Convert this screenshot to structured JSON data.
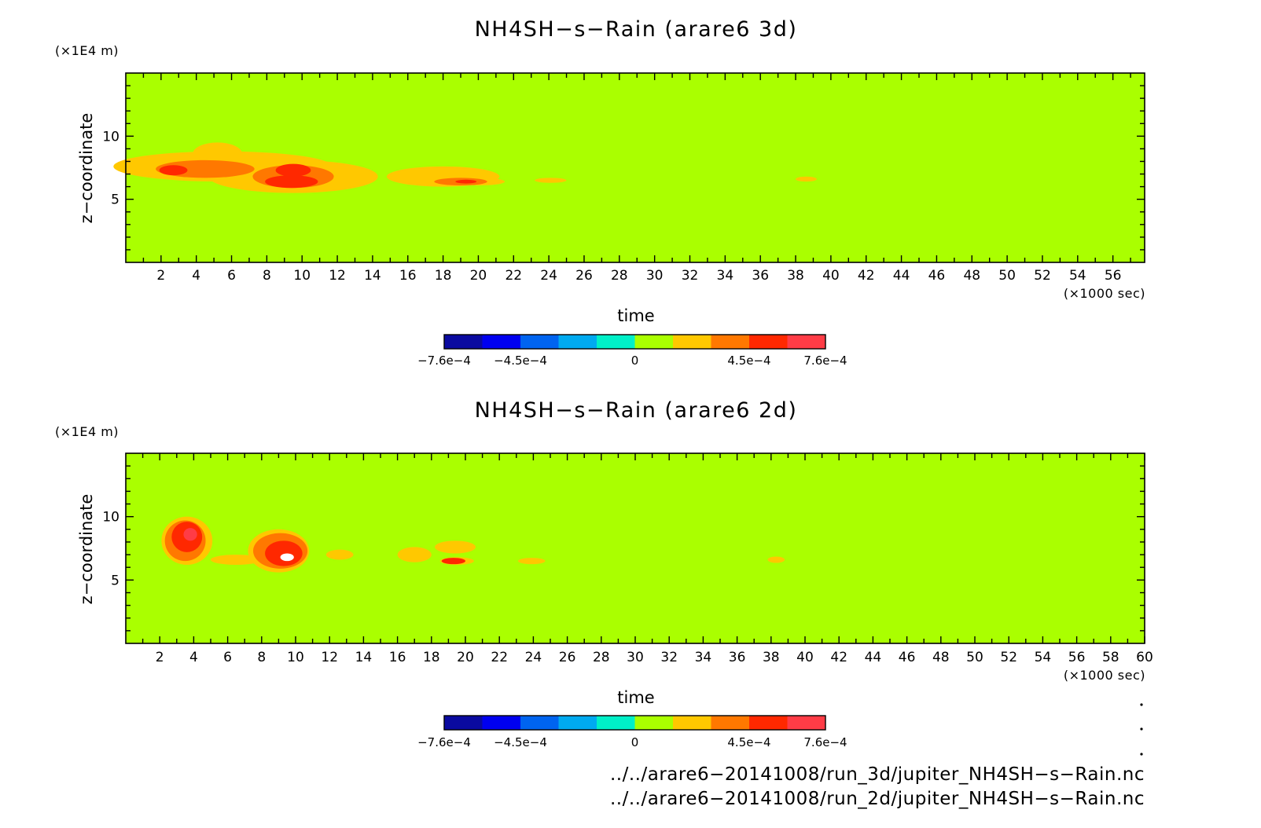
{
  "chart_data": [
    {
      "type": "heatmap",
      "title": "NH4SH−s−Rain (arare6 3d)",
      "xlabel": "time",
      "ylabel": "z−coordinate",
      "x_unit": "(×1000 sec)",
      "y_unit": "(×1E4 m)",
      "xlim": [
        0,
        57.8
      ],
      "ylim": [
        0,
        15
      ],
      "x_ticks": [
        "2",
        "4",
        "6",
        "8",
        "10",
        "12",
        "14",
        "16",
        "18",
        "20",
        "22",
        "24",
        "26",
        "28",
        "30",
        "32",
        "34",
        "36",
        "38",
        "40",
        "42",
        "44",
        "46",
        "48",
        "50",
        "52",
        "54",
        "56"
      ],
      "y_ticks": [
        "5",
        "10"
      ],
      "background_level": "0",
      "features": [
        {
          "level": 1,
          "cx": 5.5,
          "cy": 7.6,
          "rx": 6.2,
          "ry": 1.2
        },
        {
          "level": 1,
          "cx": 5.2,
          "cy": 8.6,
          "rx": 1.4,
          "ry": 0.9
        },
        {
          "level": 1,
          "cx": 9.5,
          "cy": 6.8,
          "rx": 4.8,
          "ry": 1.3
        },
        {
          "level": 1,
          "cx": 11.5,
          "cy": 7.2,
          "rx": 2.2,
          "ry": 0.5
        },
        {
          "level": 2,
          "cx": 4.5,
          "cy": 7.4,
          "rx": 2.8,
          "ry": 0.7
        },
        {
          "level": 2,
          "cx": 9.5,
          "cy": 6.8,
          "rx": 2.3,
          "ry": 0.9
        },
        {
          "level": 3,
          "cx": 2.7,
          "cy": 7.3,
          "rx": 0.8,
          "ry": 0.4
        },
        {
          "level": 3,
          "cx": 9.5,
          "cy": 7.3,
          "rx": 1.0,
          "ry": 0.5
        },
        {
          "level": 3,
          "cx": 9.4,
          "cy": 6.4,
          "rx": 1.5,
          "ry": 0.5
        },
        {
          "level": 1,
          "cx": 18.0,
          "cy": 6.8,
          "rx": 3.2,
          "ry": 0.8
        },
        {
          "level": 1,
          "cx": 20.0,
          "cy": 6.4,
          "rx": 1.5,
          "ry": 0.3
        },
        {
          "level": 2,
          "cx": 19.0,
          "cy": 6.4,
          "rx": 1.5,
          "ry": 0.3
        },
        {
          "level": 3,
          "cx": 19.3,
          "cy": 6.4,
          "rx": 0.6,
          "ry": 0.15
        },
        {
          "level": 1,
          "cx": 24.1,
          "cy": 6.5,
          "rx": 0.9,
          "ry": 0.2
        },
        {
          "level": 1,
          "cx": 38.6,
          "cy": 6.6,
          "rx": 0.6,
          "ry": 0.2
        }
      ],
      "colorbar": {
        "colors": [
          "#0a0aa0",
          "#0000f0",
          "#0064f0",
          "#00aaf0",
          "#00f0c8",
          "#aaff00",
          "#ffc800",
          "#ff7800",
          "#ff2800",
          "#ff3c46"
        ],
        "labels": [
          "−7.6e−4",
          "−4.5e−4",
          "0",
          "4.5e−4",
          "7.6e−4"
        ]
      }
    },
    {
      "type": "heatmap",
      "title": "NH4SH−s−Rain (arare6 2d)",
      "xlabel": "time",
      "ylabel": "z−coordinate",
      "x_unit": "(×1000 sec)",
      "y_unit": "(×1E4 m)",
      "xlim": [
        0,
        60
      ],
      "ylim": [
        0,
        15
      ],
      "x_ticks": [
        "2",
        "4",
        "6",
        "8",
        "10",
        "12",
        "14",
        "16",
        "18",
        "20",
        "22",
        "24",
        "26",
        "28",
        "30",
        "32",
        "34",
        "36",
        "38",
        "40",
        "42",
        "44",
        "46",
        "48",
        "50",
        "52",
        "54",
        "56",
        "58",
        "60"
      ],
      "y_ticks": [
        "5",
        "10"
      ],
      "background_level": "0",
      "features": [
        {
          "level": 1,
          "cx": 3.6,
          "cy": 8.1,
          "rx": 1.5,
          "ry": 1.9
        },
        {
          "level": 1,
          "cx": 9.0,
          "cy": 7.3,
          "rx": 1.8,
          "ry": 1.7
        },
        {
          "level": 1,
          "cx": 6.5,
          "cy": 6.6,
          "rx": 1.5,
          "ry": 0.4
        },
        {
          "level": 1,
          "cx": 12.6,
          "cy": 7.0,
          "rx": 0.8,
          "ry": 0.4
        },
        {
          "level": 2,
          "cx": 3.5,
          "cy": 8.1,
          "rx": 1.2,
          "ry": 1.6
        },
        {
          "level": 2,
          "cx": 9.1,
          "cy": 7.3,
          "rx": 1.6,
          "ry": 1.4
        },
        {
          "level": 3,
          "cx": 3.6,
          "cy": 8.4,
          "rx": 0.9,
          "ry": 1.2
        },
        {
          "level": 3,
          "cx": 9.3,
          "cy": 7.1,
          "rx": 1.1,
          "ry": 1.0
        },
        {
          "level": 4,
          "cx": 3.8,
          "cy": 8.6,
          "rx": 0.4,
          "ry": 0.5
        },
        {
          "level": 5,
          "cx": 9.5,
          "cy": 6.8,
          "rx": 0.4,
          "ry": 0.3
        },
        {
          "level": 1,
          "cx": 17.0,
          "cy": 7.0,
          "rx": 1.0,
          "ry": 0.6
        },
        {
          "level": 1,
          "cx": 19.4,
          "cy": 7.6,
          "rx": 1.2,
          "ry": 0.5
        },
        {
          "level": 1,
          "cx": 19.5,
          "cy": 6.5,
          "rx": 1.0,
          "ry": 0.3
        },
        {
          "level": 3,
          "cx": 19.3,
          "cy": 6.5,
          "rx": 0.7,
          "ry": 0.25
        },
        {
          "level": 1,
          "cx": 23.9,
          "cy": 6.5,
          "rx": 0.8,
          "ry": 0.25
        },
        {
          "level": 1,
          "cx": 38.3,
          "cy": 6.6,
          "rx": 0.5,
          "ry": 0.25
        }
      ],
      "colorbar": {
        "colors": [
          "#0a0aa0",
          "#0000f0",
          "#0064f0",
          "#00aaf0",
          "#00f0c8",
          "#aaff00",
          "#ffc800",
          "#ff7800",
          "#ff2800",
          "#ff3c46"
        ],
        "labels": [
          "−7.6e−4",
          "−4.5e−4",
          "0",
          "4.5e−4",
          "7.6e−4"
        ]
      }
    }
  ],
  "level_colors": {
    "0": "#aaff00",
    "1": "#ffc800",
    "2": "#ff7800",
    "3": "#ff2800",
    "4": "#ff3c46",
    "5": "#ffffff"
  },
  "footer": {
    "file_3d": "../../arare6−20141008/run_3d/jupiter_NH4SH−s−Rain.nc",
    "file_2d": "../../arare6−20141008/run_2d/jupiter_NH4SH−s−Rain.nc"
  }
}
